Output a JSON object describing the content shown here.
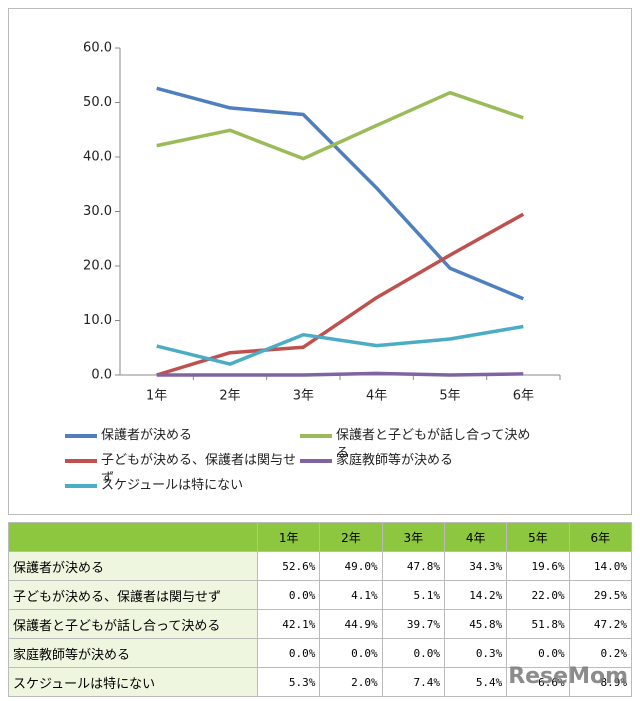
{
  "chart_data": {
    "type": "line",
    "categories": [
      "1年",
      "2年",
      "3年",
      "4年",
      "5年",
      "6年"
    ],
    "ylim": [
      0,
      60
    ],
    "yticks": [
      {
        "value": 0,
        "label": "0.0"
      },
      {
        "value": 10,
        "label": "10.0"
      },
      {
        "value": 20,
        "label": "20.0"
      },
      {
        "value": 30,
        "label": "30.0"
      },
      {
        "value": 40,
        "label": "40.0"
      },
      {
        "value": 50,
        "label": "50.0"
      },
      {
        "value": 60,
        "label": "60.0"
      }
    ],
    "grid": false,
    "series": [
      {
        "name": "保護者が決める",
        "color": "#4f7fbf",
        "values": [
          52.6,
          49.0,
          47.8,
          34.3,
          19.6,
          14.0
        ],
        "value_labels": [
          "52.6%",
          "49.0%",
          "47.8%",
          "34.3%",
          "19.6%",
          "14.0%"
        ]
      },
      {
        "name": "子どもが決める、保護者は関与せず",
        "color": "#c0504d",
        "values": [
          0.0,
          4.1,
          5.1,
          14.2,
          22.0,
          29.5
        ],
        "value_labels": [
          "0.0%",
          "4.1%",
          "5.1%",
          "14.2%",
          "22.0%",
          "29.5%"
        ]
      },
      {
        "name": "保護者と子どもが話し合って決める",
        "color": "#9bbb59",
        "values": [
          42.1,
          44.9,
          39.7,
          45.8,
          51.8,
          47.2
        ],
        "value_labels": [
          "42.1%",
          "44.9%",
          "39.7%",
          "45.8%",
          "51.8%",
          "47.2%"
        ]
      },
      {
        "name": "家庭教師等が決める",
        "color": "#8064a2",
        "values": [
          0.0,
          0.0,
          0.0,
          0.3,
          0.0,
          0.2
        ],
        "value_labels": [
          "0.0%",
          "0.0%",
          "0.0%",
          "0.3%",
          "0.0%",
          "0.2%"
        ]
      },
      {
        "name": "スケジュールは特にない",
        "color": "#4bacc6",
        "values": [
          5.3,
          2.0,
          7.4,
          5.4,
          6.6,
          8.9
        ],
        "value_labels": [
          "5.3%",
          "2.0%",
          "7.4%",
          "5.4%",
          "6.6%",
          "8.9%"
        ]
      }
    ],
    "watermark": "ReseMom"
  }
}
